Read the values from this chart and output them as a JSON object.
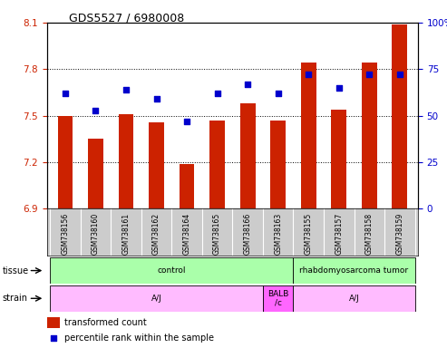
{
  "title": "GDS5527 / 6980008",
  "samples": [
    "GSM738156",
    "GSM738160",
    "GSM738161",
    "GSM738162",
    "GSM738164",
    "GSM738165",
    "GSM738166",
    "GSM738163",
    "GSM738155",
    "GSM738157",
    "GSM738158",
    "GSM738159"
  ],
  "bar_values": [
    7.5,
    7.35,
    7.51,
    7.46,
    7.19,
    7.47,
    7.58,
    7.47,
    7.84,
    7.54,
    7.84,
    8.09
  ],
  "dot_values": [
    62,
    53,
    64,
    59,
    47,
    62,
    67,
    62,
    72,
    65,
    72,
    72
  ],
  "bar_color": "#cc2200",
  "dot_color": "#0000cc",
  "ylim_left": [
    6.9,
    8.1
  ],
  "ylim_right": [
    0,
    100
  ],
  "yticks_left": [
    6.9,
    7.2,
    7.5,
    7.8,
    8.1
  ],
  "yticks_right": [
    0,
    25,
    50,
    75,
    100
  ],
  "ylabel_right_labels": [
    "0",
    "25",
    "50",
    "75",
    "100%"
  ],
  "grid_values": [
    7.2,
    7.5,
    7.8
  ],
  "tissue_patches": [
    {
      "text": "control",
      "start": 0,
      "end": 7,
      "color": "#aaffaa"
    },
    {
      "text": "rhabdomyosarcoma tumor",
      "start": 8,
      "end": 11,
      "color": "#aaffaa"
    }
  ],
  "strain_patches": [
    {
      "text": "A/J",
      "start": 0,
      "end": 6,
      "color": "#ffbbff"
    },
    {
      "text": "BALB\n/c",
      "start": 7,
      "end": 7,
      "color": "#ff66ff"
    },
    {
      "text": "A/J",
      "start": 8,
      "end": 11,
      "color": "#ffbbff"
    }
  ],
  "tissue_row_label": "tissue",
  "strain_row_label": "strain",
  "legend_bar_label": "transformed count",
  "legend_dot_label": "percentile rank within the sample",
  "tick_label_color_left": "#cc2200",
  "tick_label_color_right": "#0000cc",
  "sample_bg_color": "#cccccc",
  "title_fontsize": 9,
  "bar_width": 0.5
}
